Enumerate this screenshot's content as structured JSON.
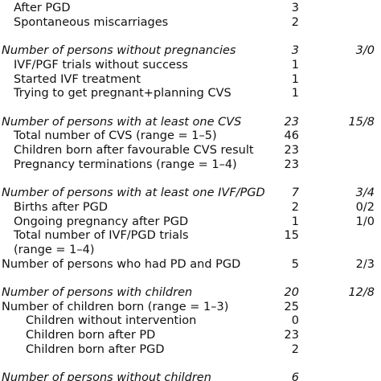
{
  "table": {
    "groups": [
      {
        "rows": [
          {
            "label": "After PGD",
            "count": "3",
            "indent": 1
          },
          {
            "label": "Spontaneous miscarriages",
            "count": "2",
            "indent": 1
          }
        ]
      },
      {
        "rows": [
          {
            "label": "Number of persons without pregnancies",
            "count": "3",
            "split": "3/0",
            "italic": true
          },
          {
            "label": "IVF/PGF trials without success",
            "count": "1",
            "indent": 1
          },
          {
            "label": "Started IVF treatment",
            "count": "1",
            "indent": 1
          },
          {
            "label": "Trying to get pregnant+planning CVS",
            "count": "1",
            "indent": 1
          }
        ]
      },
      {
        "rows": [
          {
            "label": "Number of persons with at least one CVS",
            "count": "23",
            "split": "15/8",
            "italic": true
          },
          {
            "label": "Total number of CVS (range = 1–5)",
            "count": "46",
            "indent": 1
          },
          {
            "label": "Children born after favourable CVS result",
            "count": "23",
            "indent": 1
          },
          {
            "label": "Pregnancy terminations (range = 1–4)",
            "count": "23",
            "indent": 1
          }
        ]
      },
      {
        "rows": [
          {
            "label": "Number of persons with at least one IVF/PGD",
            "count": "7",
            "split": "3/4",
            "italic": true
          },
          {
            "label": "Births after PGD",
            "count": "2",
            "split": "0/2",
            "indent": 1
          },
          {
            "label": "Ongoing pregnancy after PGD",
            "count": "1",
            "split": "1/0",
            "indent": 1
          },
          {
            "label": "Total number of IVF/PGD trials",
            "count": "15",
            "indent": 1
          },
          {
            "label": "(range = 1–4)",
            "indent": 1
          },
          {
            "label": "Number of persons who had PD and PGD",
            "count": "5",
            "split": "2/3"
          }
        ]
      },
      {
        "rows": [
          {
            "label": "Number of persons with children",
            "count": "20",
            "split": "12/8",
            "italic": true
          },
          {
            "label": "Number of children born (range = 1–3)",
            "count": "25"
          },
          {
            "label": "Children without intervention",
            "count": "0",
            "indent": 2
          },
          {
            "label": "Children born after PD",
            "count": "23",
            "indent": 2
          },
          {
            "label": "Children born after PGD",
            "count": "2",
            "indent": 2
          }
        ]
      },
      {
        "rows": [
          {
            "label": "Number of persons without children",
            "count": "6",
            "italic": true
          }
        ]
      }
    ]
  }
}
